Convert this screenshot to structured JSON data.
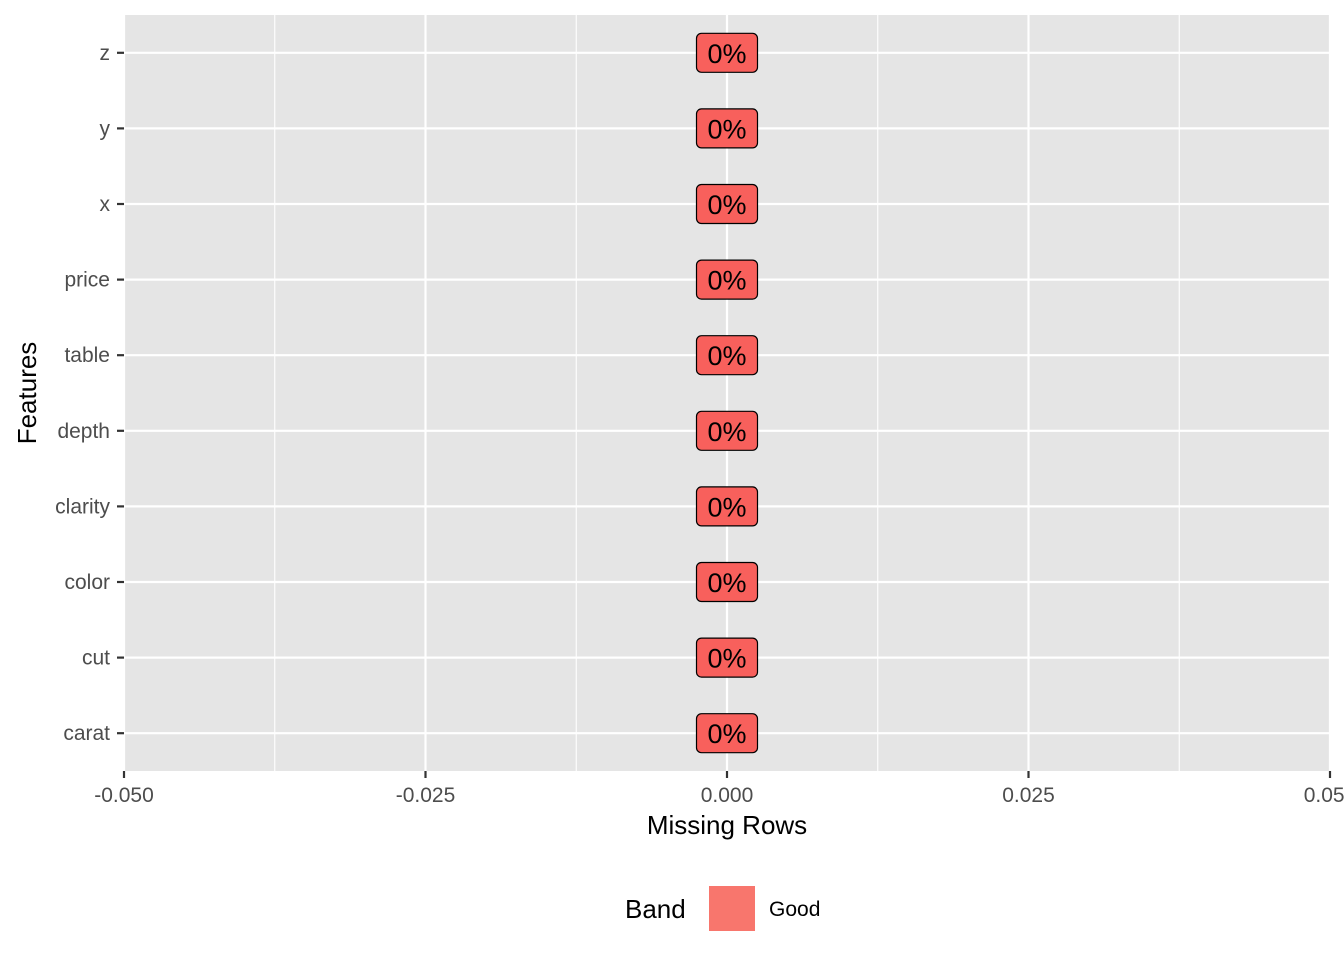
{
  "chart_data": {
    "type": "bar",
    "orientation": "horizontal",
    "categories": [
      "carat",
      "cut",
      "color",
      "clarity",
      "depth",
      "table",
      "price",
      "x",
      "y",
      "z"
    ],
    "values": [
      0,
      0,
      0,
      0,
      0,
      0,
      0,
      0,
      0,
      0
    ],
    "data_labels": [
      "0%",
      "0%",
      "0%",
      "0%",
      "0%",
      "0%",
      "0%",
      "0%",
      "0%",
      "0%"
    ],
    "bands": [
      "Good",
      "Good",
      "Good",
      "Good",
      "Good",
      "Good",
      "Good",
      "Good",
      "Good",
      "Good"
    ],
    "xlabel": "Missing Rows",
    "ylabel": "Features",
    "xlim": [
      -0.05,
      0.05
    ],
    "x_ticks": [
      -0.05,
      -0.025,
      0,
      0.025,
      0.05
    ],
    "x_tick_labels": [
      "-0.050",
      "-0.025",
      "0.000",
      "0.025",
      "0.050"
    ],
    "grid": true,
    "legend": {
      "title": "Band",
      "placement": "bottom",
      "entries": [
        {
          "label": "Good",
          "color": "#F8766D"
        }
      ]
    },
    "colors": {
      "panel_background": "#E5E5E5",
      "grid_line": "#FFFFFF",
      "bar_fill": "#F8766D",
      "label_fill": "#F8605C"
    }
  }
}
